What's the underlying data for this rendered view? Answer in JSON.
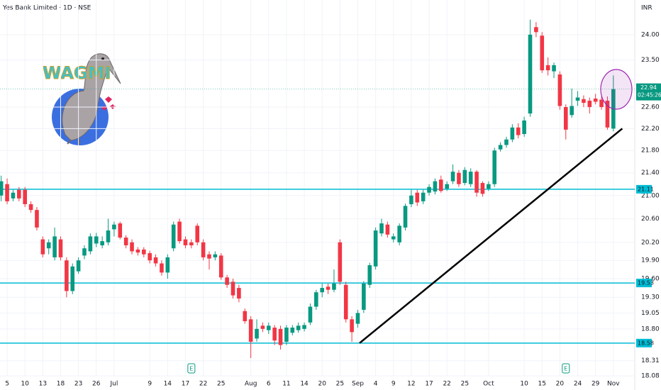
{
  "chart_data": {
    "type": "candlestick",
    "title": "Yes Bank Limited · 1D · NSE",
    "currency": "INR",
    "logo_text": "WAGMI",
    "countdown": "02:45:26",
    "categories": [
      null,
      "5",
      null,
      null,
      "10",
      null,
      null,
      "13",
      null,
      null,
      "18",
      null,
      null,
      "23",
      null,
      null,
      "26",
      null,
      null,
      "Jul",
      null,
      null,
      null,
      null,
      null,
      "9",
      null,
      null,
      "14",
      null,
      null,
      "17",
      null,
      null,
      "22",
      null,
      null,
      "25",
      null,
      null,
      null,
      null,
      "Aug",
      null,
      null,
      "6",
      null,
      null,
      "11",
      null,
      null,
      "14",
      null,
      null,
      "20",
      null,
      null,
      "25",
      null,
      null,
      "Sep",
      null,
      null,
      "4",
      null,
      null,
      "9",
      null,
      null,
      "12",
      null,
      null,
      "17",
      null,
      null,
      "22",
      null,
      null,
      "25",
      null,
      null,
      null,
      "Oct",
      null,
      null,
      null,
      null,
      null,
      "10",
      null,
      null,
      "15",
      null,
      null,
      "20",
      null,
      null,
      "24",
      null,
      null,
      "29",
      null,
      null,
      "Nov"
    ],
    "open": [
      21.0,
      21.2,
      20.95,
      21.1,
      21.1,
      20.85,
      20.75,
      20.25,
      20.1,
      19.95,
      20.25,
      19.9,
      19.4,
      19.72,
      19.98,
      20.05,
      20.18,
      20.15,
      20.2,
      20.42,
      20.52,
      20.28,
      20.2,
      20.08,
      20.08,
      20.02,
      19.95,
      19.85,
      19.7,
      20.1,
      20.55,
      20.25,
      20.2,
      20.48,
      20.2,
      20.0,
      19.95,
      19.98,
      19.62,
      19.55,
      19.45,
      19.08,
      18.95,
      18.65,
      18.85,
      18.78,
      18.82,
      18.8,
      18.6,
      18.74,
      18.78,
      18.8,
      18.9,
      19.15,
      19.38,
      19.47,
      19.42,
      20.2,
      19.5,
      18.95,
      18.88,
      19.1,
      19.5,
      19.8,
      20.35,
      20.5,
      20.25,
      20.2,
      20.45,
      20.85,
      21.05,
      20.9,
      21.05,
      21.07,
      21.28,
      21.12,
      21.25,
      21.4,
      21.22,
      21.2,
      21.42,
      21.22,
      21.12,
      21.2,
      21.82,
      21.9,
      22.0,
      22.22,
      22.1,
      22.48,
      24.15,
      23.98,
      23.4,
      23.28,
      23.22,
      22.6,
      22.45,
      22.72,
      22.75,
      22.72,
      22.76,
      22.74,
      22.72,
      22.2
    ],
    "high": [
      21.35,
      21.3,
      21.1,
      21.15,
      21.15,
      20.9,
      20.8,
      20.3,
      20.25,
      20.45,
      20.3,
      19.95,
      19.85,
      19.95,
      20.15,
      20.35,
      20.36,
      20.3,
      20.6,
      20.55,
      20.55,
      20.32,
      20.25,
      20.12,
      20.12,
      20.06,
      20.0,
      19.9,
      20.0,
      20.55,
      20.6,
      20.3,
      20.25,
      20.52,
      20.25,
      20.05,
      20.05,
      20.02,
      19.66,
      19.6,
      19.5,
      19.12,
      19.0,
      18.95,
      18.9,
      18.9,
      18.86,
      18.85,
      18.86,
      18.86,
      18.9,
      18.9,
      19.2,
      19.42,
      19.52,
      19.52,
      19.75,
      20.25,
      19.55,
      19.0,
      19.1,
      19.56,
      19.86,
      20.45,
      20.6,
      20.55,
      20.35,
      20.52,
      20.86,
      21.1,
      21.1,
      21.1,
      21.2,
      21.3,
      21.35,
      21.25,
      21.55,
      21.45,
      21.5,
      21.48,
      21.45,
      21.25,
      21.25,
      21.85,
      21.95,
      22.05,
      22.28,
      22.3,
      22.42,
      24.3,
      24.25,
      24.05,
      23.55,
      23.45,
      23.28,
      22.65,
      22.95,
      22.9,
      22.82,
      22.78,
      22.85,
      22.8,
      22.8,
      23.2
    ],
    "low": [
      20.9,
      20.85,
      20.9,
      20.9,
      20.8,
      20.7,
      20.4,
      19.95,
      20.0,
      19.9,
      19.9,
      19.3,
      19.35,
      19.68,
      19.92,
      20.0,
      20.12,
      20.1,
      20.15,
      20.3,
      20.25,
      20.1,
      20.0,
      19.98,
      19.95,
      19.85,
      19.8,
      19.65,
      19.6,
      20.05,
      20.18,
      20.1,
      20.1,
      20.15,
      19.9,
      19.75,
      19.9,
      19.58,
      19.45,
      19.28,
      19.22,
      18.88,
      18.35,
      18.6,
      18.75,
      18.72,
      18.55,
      18.48,
      18.55,
      18.7,
      18.74,
      18.76,
      18.86,
      19.1,
      19.3,
      19.35,
      19.38,
      19.5,
      18.9,
      18.6,
      18.82,
      19.05,
      19.45,
      19.75,
      20.3,
      20.28,
      20.2,
      20.15,
      20.4,
      20.8,
      20.82,
      20.85,
      21.0,
      21.02,
      21.05,
      21.08,
      21.2,
      21.15,
      21.18,
      21.15,
      20.98,
      20.98,
      21.08,
      21.15,
      21.78,
      21.85,
      21.95,
      22.02,
      22.05,
      22.42,
      23.95,
      23.25,
      23.2,
      23.15,
      22.55,
      22.0,
      22.4,
      22.62,
      22.6,
      22.48,
      22.65,
      22.55,
      22.18,
      22.15
    ],
    "close": [
      21.25,
      20.9,
      21.05,
      20.95,
      20.85,
      20.75,
      20.45,
      20.0,
      20.2,
      20.3,
      19.95,
      19.4,
      19.8,
      19.9,
      20.1,
      20.3,
      20.3,
      20.22,
      20.4,
      20.5,
      20.28,
      20.15,
      20.05,
      20.03,
      20.0,
      19.9,
      19.85,
      19.7,
      19.95,
      20.5,
      20.22,
      20.15,
      20.15,
      20.2,
      19.95,
      19.93,
      20.0,
      19.62,
      19.5,
      19.33,
      19.28,
      18.92,
      18.6,
      18.8,
      18.8,
      18.85,
      18.62,
      18.55,
      18.82,
      18.82,
      18.85,
      18.86,
      19.15,
      19.38,
      19.45,
      19.42,
      19.52,
      19.55,
      18.95,
      18.75,
      19.05,
      19.52,
      19.82,
      20.4,
      20.52,
      20.33,
      20.3,
      20.48,
      20.82,
      21.0,
      20.88,
      21.05,
      21.15,
      21.25,
      21.08,
      21.2,
      21.42,
      21.2,
      21.45,
      21.42,
      21.05,
      21.03,
      21.2,
      21.8,
      21.9,
      22.0,
      22.22,
      22.08,
      22.35,
      24.0,
      24.05,
      23.3,
      23.3,
      23.4,
      22.62,
      22.18,
      22.62,
      22.78,
      22.68,
      22.6,
      22.7,
      22.6,
      22.22,
      22.94
    ],
    "up_color": "#089981",
    "down_color": "#f23645",
    "xlim": [
      -0.2,
      106.6
    ],
    "ylim": [
      18.05,
      24.7
    ],
    "log_scale": true,
    "grid": true,
    "yticks": [
      {
        "value": 24,
        "label": "24.00"
      },
      {
        "value": 23.5,
        "label": "23.50"
      },
      {
        "value": 22.6,
        "label": "22.60"
      },
      {
        "value": 22.2,
        "label": "22.20"
      },
      {
        "value": 21.8,
        "label": "21.80"
      },
      {
        "value": 21.4,
        "label": "21.40"
      },
      {
        "value": 21,
        "label": "21.00"
      },
      {
        "value": 20.6,
        "label": "20.60"
      },
      {
        "value": 20.2,
        "label": "20.20"
      },
      {
        "value": 19.9,
        "label": "19.90"
      },
      {
        "value": 19.6,
        "label": "19.60"
      },
      {
        "value": 19.3,
        "label": "19.30"
      },
      {
        "value": 19.05,
        "label": "19.05"
      },
      {
        "value": 18.8,
        "label": "18.80"
      },
      {
        "value": 18.31,
        "label": "18.31"
      },
      {
        "value": 18.08,
        "label": "18.08"
      }
    ],
    "levels": [
      21.11,
      19.53,
      18.58
    ],
    "level_color": "#00bcd4",
    "trendline": {
      "x": [
        60.3,
        104.5
      ],
      "y": [
        18.58,
        22.2
      ],
      "color": "#000000"
    },
    "events": [
      {
        "index": 32,
        "label": "E"
      },
      {
        "index": 95,
        "label": "E"
      }
    ]
  }
}
